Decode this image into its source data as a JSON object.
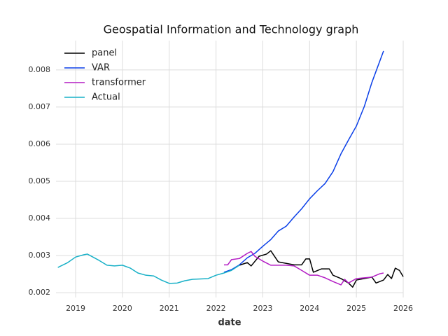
{
  "chart_data": {
    "type": "line",
    "title": "Geospatial Information and Technology graph",
    "xlabel": "date",
    "xlim": [
      2018.58,
      2026.0
    ],
    "xticks": [
      2019,
      2020,
      2021,
      2022,
      2023,
      2024,
      2025,
      2026
    ],
    "ylim": [
      0.00187,
      0.00879
    ],
    "yticks": [
      0.002,
      0.003,
      0.004,
      0.005,
      0.006,
      0.007,
      0.008
    ],
    "grid": true,
    "legend": "upper left",
    "series": [
      {
        "name": "panel",
        "color": "#000000",
        "x": [
          2022.5,
          2022.67,
          2022.75,
          2022.92,
          2023.08,
          2023.17,
          2023.33,
          2023.5,
          2023.67,
          2023.83,
          2023.92,
          2024.0,
          2024.08,
          2024.25,
          2024.42,
          2024.5,
          2024.67,
          2024.83,
          2024.92,
          2025.0,
          2025.17,
          2025.33,
          2025.42,
          2025.58,
          2025.67,
          2025.75,
          2025.83,
          2025.92,
          2026.0
        ],
        "values": [
          0.00274,
          0.00281,
          0.00272,
          0.00298,
          0.00304,
          0.00313,
          0.00283,
          0.00279,
          0.00275,
          0.00275,
          0.00291,
          0.00291,
          0.00255,
          0.00264,
          0.00264,
          0.00247,
          0.00238,
          0.00226,
          0.00215,
          0.00234,
          0.00238,
          0.00242,
          0.00226,
          0.00234,
          0.00249,
          0.00238,
          0.00266,
          0.0026,
          0.00243
        ]
      },
      {
        "name": "VAR",
        "color": "#0a3fe8",
        "x": [
          2022.17,
          2022.33,
          2022.5,
          2022.67,
          2022.83,
          2023.0,
          2023.17,
          2023.33,
          2023.5,
          2023.67,
          2023.83,
          2024.0,
          2024.17,
          2024.33,
          2024.5,
          2024.67,
          2024.83,
          2025.0,
          2025.17,
          2025.33,
          2025.58
        ],
        "values": [
          0.00255,
          0.00262,
          0.00275,
          0.00294,
          0.00306,
          0.00325,
          0.00343,
          0.00366,
          0.00379,
          0.00404,
          0.00426,
          0.00453,
          0.00475,
          0.00494,
          0.00526,
          0.00574,
          0.00611,
          0.00649,
          0.00702,
          0.00766,
          0.00851
        ]
      },
      {
        "name": "transformer",
        "color": "#b31cc4",
        "x": [
          2022.17,
          2022.25,
          2022.33,
          2022.5,
          2022.67,
          2022.75,
          2022.83,
          2023.0,
          2023.17,
          2023.33,
          2023.5,
          2023.67,
          2023.83,
          2024.0,
          2024.17,
          2024.33,
          2024.5,
          2024.67,
          2024.75,
          2024.83,
          2025.0,
          2025.17,
          2025.33,
          2025.5,
          2025.58
        ],
        "values": [
          0.00275,
          0.00275,
          0.00289,
          0.00292,
          0.00306,
          0.00311,
          0.00298,
          0.00285,
          0.00274,
          0.00274,
          0.00274,
          0.00272,
          0.0026,
          0.00247,
          0.00247,
          0.0024,
          0.0023,
          0.00221,
          0.00236,
          0.00226,
          0.00238,
          0.0024,
          0.00242,
          0.00251,
          0.00253
        ]
      },
      {
        "name": "Actual",
        "color": "#17b0c7",
        "x": [
          2018.62,
          2018.83,
          2019.0,
          2019.17,
          2019.25,
          2019.5,
          2019.67,
          2019.83,
          2020.0,
          2020.17,
          2020.33,
          2020.5,
          2020.67,
          2020.83,
          2021.0,
          2021.17,
          2021.33,
          2021.5,
          2021.83,
          2022.0,
          2022.17,
          2022.33,
          2022.5
        ],
        "values": [
          0.00268,
          0.00281,
          0.00296,
          0.00302,
          0.00304,
          0.00287,
          0.00274,
          0.00272,
          0.00274,
          0.00266,
          0.00253,
          0.00247,
          0.00245,
          0.00234,
          0.00225,
          0.00226,
          0.00232,
          0.00236,
          0.00238,
          0.00247,
          0.00253,
          0.0026,
          0.00274
        ]
      }
    ]
  }
}
